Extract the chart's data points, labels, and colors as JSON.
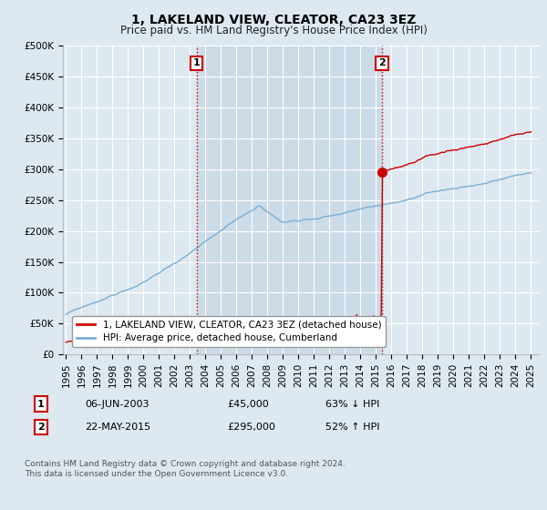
{
  "title": "1, LAKELAND VIEW, CLEATOR, CA23 3EZ",
  "subtitle": "Price paid vs. HM Land Registry's House Price Index (HPI)",
  "ylabel_ticks": [
    "£0",
    "£50K",
    "£100K",
    "£150K",
    "£200K",
    "£250K",
    "£300K",
    "£350K",
    "£400K",
    "£450K",
    "£500K"
  ],
  "ytick_values": [
    0,
    50000,
    100000,
    150000,
    200000,
    250000,
    300000,
    350000,
    400000,
    450000,
    500000
  ],
  "ylim": [
    0,
    500000
  ],
  "xlim_start": 1994.8,
  "xlim_end": 2025.5,
  "background_color": "#dde8f0",
  "plot_bg_color": "#dde8f0",
  "grid_color": "#ffffff",
  "line_red_color": "#cc0000",
  "line_blue_color": "#7bafd4",
  "transaction1_year": 2003.43,
  "transaction1_price": 45000,
  "transaction2_year": 2015.39,
  "transaction2_price": 295000,
  "legend_red_label": "1, LAKELAND VIEW, CLEATOR, CA23 3EZ (detached house)",
  "legend_blue_label": "HPI: Average price, detached house, Cumberland",
  "table_row1": [
    "1",
    "06-JUN-2003",
    "£45,000",
    "63% ↓ HPI"
  ],
  "table_row2": [
    "2",
    "22-MAY-2015",
    "£295,000",
    "52% ↑ HPI"
  ],
  "footnote": "Contains HM Land Registry data © Crown copyright and database right 2024.\nThis data is licensed under the Open Government Licence v3.0.",
  "vline_color": "#cc0000",
  "title_fontsize": 10,
  "subtitle_fontsize": 8.5,
  "tick_fontsize": 7.5,
  "legend_fontsize": 7.5,
  "shaded_color": "#ccdbe8"
}
